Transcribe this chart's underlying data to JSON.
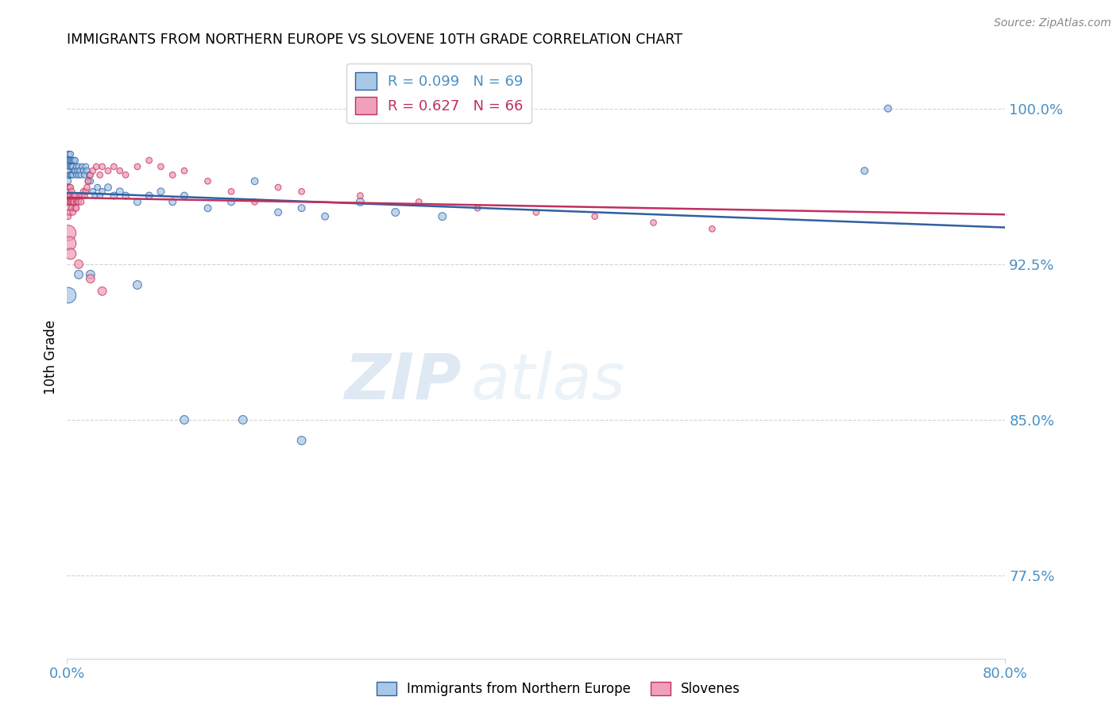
{
  "title": "IMMIGRANTS FROM NORTHERN EUROPE VS SLOVENE 10TH GRADE CORRELATION CHART",
  "source": "Source: ZipAtlas.com",
  "ylabel": "10th Grade",
  "legend_label1": "Immigrants from Northern Europe",
  "legend_label2": "Slovenes",
  "r1": 0.099,
  "n1": 69,
  "r2": 0.627,
  "n2": 66,
  "color_blue": "#a8c8e8",
  "color_pink": "#f0a0b8",
  "color_blue_line": "#3060a0",
  "color_pink_line": "#c03060",
  "color_tick": "#4a90c4",
  "xlim": [
    0.0,
    0.8
  ],
  "ylim": [
    0.735,
    1.025
  ],
  "yticks": [
    0.775,
    0.85,
    0.925,
    1.0
  ],
  "ytick_labels": [
    "77.5%",
    "85.0%",
    "92.5%",
    "100.0%"
  ],
  "xticks": [
    0.0,
    0.8
  ],
  "xtick_labels": [
    "0.0%",
    "80.0%"
  ],
  "watermark": "ZIPatlas",
  "blue_x": [
    0.001,
    0.001,
    0.001,
    0.001,
    0.002,
    0.002,
    0.002,
    0.002,
    0.003,
    0.003,
    0.003,
    0.003,
    0.004,
    0.004,
    0.004,
    0.005,
    0.005,
    0.005,
    0.006,
    0.006,
    0.007,
    0.007,
    0.008,
    0.008,
    0.009,
    0.01,
    0.01,
    0.011,
    0.012,
    0.013,
    0.014,
    0.015,
    0.016,
    0.017,
    0.018,
    0.019,
    0.02,
    0.022,
    0.024,
    0.026,
    0.028,
    0.03,
    0.035,
    0.04,
    0.045,
    0.05,
    0.06,
    0.07,
    0.08,
    0.09,
    0.1,
    0.12,
    0.14,
    0.16,
    0.18,
    0.2,
    0.22,
    0.25,
    0.28,
    0.32,
    0.001,
    0.01,
    0.02,
    0.06,
    0.1,
    0.15,
    0.2,
    0.7,
    0.68
  ],
  "blue_y": [
    0.978,
    0.975,
    0.97,
    0.965,
    0.978,
    0.975,
    0.972,
    0.968,
    0.978,
    0.975,
    0.972,
    0.968,
    0.975,
    0.972,
    0.968,
    0.975,
    0.972,
    0.968,
    0.975,
    0.97,
    0.975,
    0.97,
    0.972,
    0.968,
    0.97,
    0.972,
    0.968,
    0.97,
    0.968,
    0.972,
    0.97,
    0.968,
    0.972,
    0.97,
    0.965,
    0.968,
    0.965,
    0.96,
    0.958,
    0.962,
    0.958,
    0.96,
    0.962,
    0.958,
    0.96,
    0.958,
    0.955,
    0.958,
    0.96,
    0.955,
    0.958,
    0.952,
    0.955,
    0.965,
    0.95,
    0.952,
    0.948,
    0.955,
    0.95,
    0.948,
    0.91,
    0.92,
    0.92,
    0.915,
    0.85,
    0.85,
    0.84,
    1.0,
    0.97
  ],
  "blue_size": [
    30,
    30,
    30,
    30,
    30,
    30,
    30,
    30,
    30,
    30,
    30,
    30,
    30,
    30,
    30,
    30,
    30,
    30,
    30,
    30,
    30,
    30,
    30,
    30,
    30,
    30,
    30,
    30,
    30,
    30,
    30,
    30,
    30,
    30,
    30,
    30,
    30,
    30,
    30,
    30,
    30,
    30,
    40,
    40,
    40,
    40,
    40,
    40,
    40,
    40,
    40,
    40,
    40,
    40,
    40,
    40,
    40,
    50,
    50,
    50,
    200,
    60,
    60,
    60,
    60,
    60,
    60,
    40,
    40
  ],
  "pink_x": [
    0.001,
    0.001,
    0.001,
    0.001,
    0.001,
    0.002,
    0.002,
    0.002,
    0.002,
    0.003,
    0.003,
    0.003,
    0.004,
    0.004,
    0.004,
    0.005,
    0.005,
    0.005,
    0.006,
    0.006,
    0.007,
    0.007,
    0.008,
    0.008,
    0.009,
    0.01,
    0.011,
    0.012,
    0.013,
    0.014,
    0.015,
    0.016,
    0.017,
    0.018,
    0.02,
    0.022,
    0.025,
    0.028,
    0.03,
    0.035,
    0.04,
    0.045,
    0.05,
    0.06,
    0.07,
    0.08,
    0.09,
    0.1,
    0.12,
    0.14,
    0.16,
    0.18,
    0.2,
    0.25,
    0.3,
    0.35,
    0.4,
    0.45,
    0.5,
    0.55,
    0.001,
    0.002,
    0.003,
    0.01,
    0.02,
    0.03
  ],
  "pink_y": [
    0.962,
    0.958,
    0.955,
    0.952,
    0.948,
    0.962,
    0.958,
    0.955,
    0.95,
    0.962,
    0.958,
    0.955,
    0.96,
    0.955,
    0.952,
    0.958,
    0.955,
    0.95,
    0.958,
    0.955,
    0.958,
    0.952,
    0.955,
    0.952,
    0.955,
    0.955,
    0.958,
    0.955,
    0.958,
    0.96,
    0.958,
    0.96,
    0.962,
    0.965,
    0.968,
    0.97,
    0.972,
    0.968,
    0.972,
    0.97,
    0.972,
    0.97,
    0.968,
    0.972,
    0.975,
    0.972,
    0.968,
    0.97,
    0.965,
    0.96,
    0.955,
    0.962,
    0.96,
    0.958,
    0.955,
    0.952,
    0.95,
    0.948,
    0.945,
    0.942,
    0.94,
    0.935,
    0.93,
    0.925,
    0.918,
    0.912
  ],
  "pink_size": [
    30,
    30,
    30,
    30,
    30,
    30,
    30,
    30,
    30,
    30,
    30,
    30,
    30,
    30,
    30,
    30,
    30,
    30,
    30,
    30,
    30,
    30,
    30,
    30,
    30,
    30,
    30,
    30,
    30,
    30,
    30,
    30,
    30,
    30,
    30,
    30,
    30,
    30,
    30,
    30,
    30,
    30,
    30,
    30,
    30,
    30,
    30,
    30,
    30,
    30,
    30,
    30,
    30,
    30,
    30,
    30,
    30,
    30,
    30,
    30,
    200,
    150,
    100,
    60,
    60,
    60
  ]
}
